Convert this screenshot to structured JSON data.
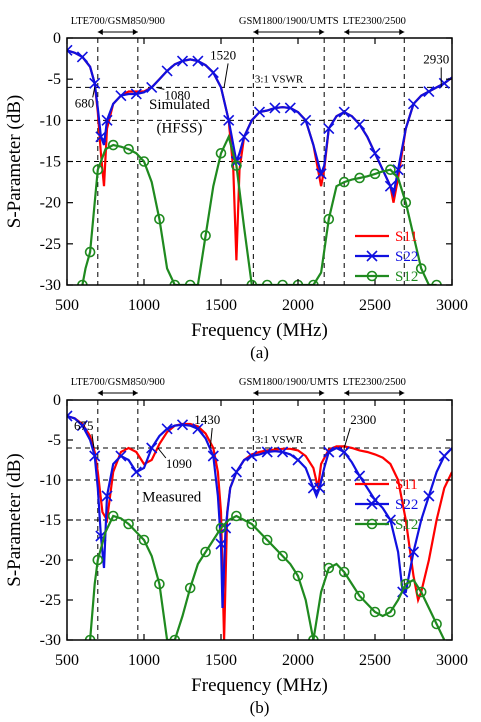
{
  "colors": {
    "s11": "#ff0000",
    "s22": "#1010e0",
    "s12": "#1f8a1f",
    "axis": "#000000"
  },
  "chart_data": [
    {
      "type": "line",
      "panel_label": "(a)",
      "xlabel": "Frequency (MHz)",
      "ylabel": "S-Parameter (dB)",
      "xlim": [
        500,
        3000
      ],
      "ylim": [
        -30,
        0
      ],
      "x_ticks": [
        500,
        1000,
        1500,
        2000,
        2500,
        3000
      ],
      "y_ticks": [
        0,
        -5,
        -10,
        -15,
        -20,
        -25,
        -30
      ],
      "grid": false,
      "legend_position": "bottom-right",
      "bands": [
        {
          "label": "LTE700/GSM850/900",
          "x_range": [
            700,
            960
          ]
        },
        {
          "label": "GSM1800/1900/UMTS",
          "x_range": [
            1710,
            2170
          ]
        },
        {
          "label": "LTE2300/2500",
          "x_range": [
            2300,
            2690
          ]
        }
      ],
      "reference_lines": [
        {
          "label": "3:1 VSWR",
          "y": -6
        },
        {
          "label": "",
          "y": -10
        },
        {
          "label": "",
          "y": -15
        }
      ],
      "annotations": [
        {
          "text": "680",
          "x": 680
        },
        {
          "text": "1080",
          "x": 1080
        },
        {
          "text": "1520",
          "x": 1520
        },
        {
          "text": "2930",
          "x": 2930
        },
        {
          "text": "Simulated",
          "x": 1230
        },
        {
          "text": "(HFSS)",
          "x": 1230
        }
      ],
      "series": [
        {
          "name": "S11",
          "marker": "none",
          "x": [
            500,
            550,
            600,
            650,
            680,
            700,
            720,
            740,
            760,
            800,
            850,
            900,
            950,
            1000,
            1050,
            1100,
            1150,
            1200,
            1250,
            1300,
            1350,
            1400,
            1450,
            1500,
            1550,
            1580,
            1600,
            1620,
            1650,
            1700,
            1750,
            1800,
            1850,
            1900,
            1950,
            2000,
            2050,
            2100,
            2150,
            2170,
            2200,
            2250,
            2300,
            2350,
            2400,
            2450,
            2500,
            2550,
            2600,
            2620,
            2650,
            2700,
            2750,
            2800,
            2850,
            2900,
            2950,
            3000
          ],
          "y": [
            -1.5,
            -1.8,
            -2.3,
            -3.5,
            -5.5,
            -9,
            -14,
            -18,
            -11,
            -8,
            -7,
            -6.5,
            -6.5,
            -6.5,
            -6,
            -5,
            -4,
            -3.2,
            -2.8,
            -2.6,
            -2.8,
            -3.3,
            -4.2,
            -6,
            -10,
            -16,
            -27,
            -16,
            -12,
            -10,
            -9,
            -8.8,
            -8.5,
            -8.4,
            -8.5,
            -9,
            -10,
            -13,
            -18,
            -16,
            -11,
            -9.5,
            -9,
            -9.5,
            -10.5,
            -12,
            -14,
            -16,
            -18,
            -20,
            -17,
            -11,
            -8,
            -7,
            -6.5,
            -6,
            -5.5,
            -4.8
          ]
        },
        {
          "name": "S22",
          "marker": "x",
          "x": [
            500,
            550,
            600,
            650,
            680,
            700,
            720,
            740,
            760,
            800,
            850,
            900,
            950,
            1000,
            1050,
            1100,
            1150,
            1200,
            1250,
            1300,
            1350,
            1400,
            1450,
            1500,
            1550,
            1580,
            1600,
            1620,
            1650,
            1700,
            1750,
            1800,
            1850,
            1900,
            1950,
            2000,
            2050,
            2100,
            2150,
            2170,
            2200,
            2250,
            2300,
            2350,
            2400,
            2450,
            2500,
            2550,
            2600,
            2620,
            2650,
            2700,
            2750,
            2800,
            2850,
            2900,
            2950,
            3000
          ],
          "y": [
            -1.5,
            -1.8,
            -2.3,
            -3.5,
            -5.5,
            -8.5,
            -12,
            -13,
            -10,
            -8,
            -7,
            -6.8,
            -6.8,
            -6.6,
            -6,
            -5,
            -4,
            -3.2,
            -2.8,
            -2.6,
            -2.8,
            -3.3,
            -4.2,
            -6,
            -10,
            -13,
            -15,
            -14,
            -12,
            -10,
            -9,
            -8.8,
            -8.5,
            -8.4,
            -8.5,
            -9,
            -10,
            -13,
            -16.5,
            -15.5,
            -11,
            -9.5,
            -9,
            -9.5,
            -10.5,
            -12,
            -14,
            -16,
            -18,
            -19,
            -16,
            -11,
            -8,
            -7,
            -6.5,
            -6,
            -5.5,
            -4.8
          ]
        },
        {
          "name": "S12",
          "marker": "o",
          "x": [
            600,
            620,
            650,
            680,
            700,
            750,
            800,
            850,
            900,
            950,
            1000,
            1050,
            1100,
            1150,
            1200,
            1250,
            1300,
            1350,
            1400,
            1450,
            1500,
            1550,
            1600,
            1650,
            1700,
            1750,
            1800,
            1850,
            1900,
            1950,
            2000,
            2050,
            2100,
            2150,
            2200,
            2250,
            2300,
            2350,
            2400,
            2450,
            2500,
            2550,
            2600,
            2650,
            2700,
            2750,
            2800,
            2850,
            2900
          ],
          "y": [
            -30,
            -28,
            -26,
            -20,
            -16,
            -13.5,
            -13,
            -13.2,
            -13.5,
            -14,
            -15,
            -17.5,
            -22,
            -28,
            -30,
            -30,
            -30,
            -30,
            -24,
            -18,
            -14,
            -12,
            -15.5,
            -23,
            -30,
            -30,
            -30,
            -30,
            -30,
            -30,
            -30,
            -30,
            -30,
            -28.5,
            -22,
            -18,
            -17.5,
            -17.2,
            -17,
            -16.8,
            -16.5,
            -16.2,
            -16,
            -17,
            -20,
            -24,
            -28,
            -30,
            -30
          ]
        }
      ]
    },
    {
      "type": "line",
      "panel_label": "(b)",
      "xlabel": "Frequency (MHz)",
      "ylabel": "S-Parameter (dB)",
      "xlim": [
        500,
        3000
      ],
      "ylim": [
        -30,
        0
      ],
      "x_ticks": [
        500,
        1000,
        1500,
        2000,
        2500,
        3000
      ],
      "y_ticks": [
        0,
        -5,
        -10,
        -15,
        -20,
        -25,
        -30
      ],
      "grid": false,
      "legend_position": "top-right",
      "bands": [
        {
          "label": "LTE700/GSM850/900",
          "x_range": [
            700,
            960
          ]
        },
        {
          "label": "GSM1800/1900/UMTS",
          "x_range": [
            1710,
            2170
          ]
        },
        {
          "label": "LTE2300/2500",
          "x_range": [
            2300,
            2690
          ]
        }
      ],
      "reference_lines": [
        {
          "label": "3:1 VSWR",
          "y": -6
        },
        {
          "label": "",
          "y": -10
        },
        {
          "label": "",
          "y": -15
        }
      ],
      "annotations": [
        {
          "text": "675",
          "x": 675
        },
        {
          "text": "1090",
          "x": 1090
        },
        {
          "text": "1430",
          "x": 1430
        },
        {
          "text": "2300",
          "x": 2300
        },
        {
          "text": "Measured",
          "x": 1180
        }
      ],
      "series": [
        {
          "name": "S11",
          "marker": "none",
          "x": [
            500,
            550,
            600,
            650,
            680,
            700,
            730,
            760,
            800,
            850,
            900,
            950,
            1000,
            1050,
            1100,
            1150,
            1200,
            1250,
            1300,
            1350,
            1400,
            1450,
            1480,
            1500,
            1520,
            1540,
            1560,
            1600,
            1650,
            1700,
            1750,
            1800,
            1850,
            1900,
            1950,
            2000,
            2050,
            2100,
            2130,
            2150,
            2200,
            2250,
            2300,
            2350,
            2400,
            2450,
            2500,
            2550,
            2600,
            2650,
            2700,
            2750,
            2780,
            2800,
            2850,
            2900,
            2950,
            3000
          ],
          "y": [
            -2,
            -2.3,
            -3,
            -4.5,
            -6.5,
            -9,
            -14,
            -15,
            -9,
            -6.5,
            -6,
            -6.5,
            -8,
            -7.5,
            -5.5,
            -4,
            -3.2,
            -3,
            -3,
            -3.3,
            -4.2,
            -6,
            -9,
            -14,
            -30,
            -14,
            -11,
            -9,
            -7.5,
            -6.8,
            -6.5,
            -6.3,
            -6.2,
            -6.1,
            -6.1,
            -6.3,
            -7,
            -8.5,
            -11,
            -8,
            -6.2,
            -5.8,
            -5.8,
            -6,
            -6.3,
            -6.5,
            -6.8,
            -7.2,
            -8,
            -10,
            -15,
            -22,
            -25,
            -24,
            -20,
            -15,
            -11,
            -9
          ]
        },
        {
          "name": "S22",
          "marker": "x",
          "x": [
            500,
            550,
            600,
            650,
            680,
            700,
            720,
            740,
            760,
            800,
            850,
            900,
            950,
            1000,
            1050,
            1100,
            1150,
            1200,
            1250,
            1300,
            1350,
            1400,
            1450,
            1480,
            1500,
            1510,
            1530,
            1560,
            1600,
            1650,
            1700,
            1750,
            1800,
            1850,
            1900,
            1950,
            2000,
            2050,
            2100,
            2120,
            2140,
            2170,
            2200,
            2250,
            2300,
            2350,
            2400,
            2450,
            2500,
            2550,
            2600,
            2650,
            2680,
            2700,
            2750,
            2800,
            2850,
            2900,
            2950,
            3000
          ],
          "y": [
            -2,
            -2.3,
            -3.2,
            -5,
            -7,
            -11,
            -17,
            -21,
            -12,
            -8,
            -7,
            -7.5,
            -9,
            -8.5,
            -6,
            -4.5,
            -3.6,
            -3.2,
            -3.1,
            -3.2,
            -3.6,
            -4.8,
            -7,
            -12,
            -18,
            -26,
            -16,
            -11,
            -9,
            -7.5,
            -7,
            -6.8,
            -6.5,
            -6.4,
            -6.5,
            -6.8,
            -7.5,
            -8.5,
            -11,
            -12,
            -11,
            -8.5,
            -6.5,
            -6,
            -6.5,
            -7.8,
            -9.5,
            -11,
            -12.5,
            -13.5,
            -15,
            -19,
            -24,
            -24,
            -19,
            -15,
            -12,
            -9,
            -7,
            -6
          ]
        },
        {
          "name": "S12",
          "marker": "o",
          "x": [
            650,
            680,
            700,
            750,
            800,
            850,
            900,
            950,
            1000,
            1050,
            1100,
            1150,
            1200,
            1250,
            1300,
            1350,
            1400,
            1450,
            1500,
            1550,
            1600,
            1650,
            1700,
            1750,
            1800,
            1850,
            1900,
            1950,
            2000,
            2050,
            2100,
            2150,
            2200,
            2250,
            2300,
            2350,
            2400,
            2450,
            2500,
            2550,
            2600,
            2650,
            2700,
            2750,
            2800,
            2850,
            2900,
            2950
          ],
          "y": [
            -30,
            -23,
            -20,
            -16.5,
            -14.5,
            -14.8,
            -15.5,
            -16.5,
            -17.5,
            -19.5,
            -23,
            -30,
            -30,
            -27,
            -23.5,
            -20.5,
            -19,
            -17.5,
            -16,
            -15,
            -14.5,
            -15,
            -15.5,
            -16.5,
            -17.5,
            -18.5,
            -19.5,
            -20.5,
            -22,
            -25,
            -30,
            -24,
            -21,
            -20.5,
            -21.5,
            -23,
            -24.5,
            -25.5,
            -26.5,
            -27,
            -26.5,
            -25,
            -23,
            -22.5,
            -24,
            -26,
            -28,
            -30
          ]
        }
      ]
    }
  ]
}
